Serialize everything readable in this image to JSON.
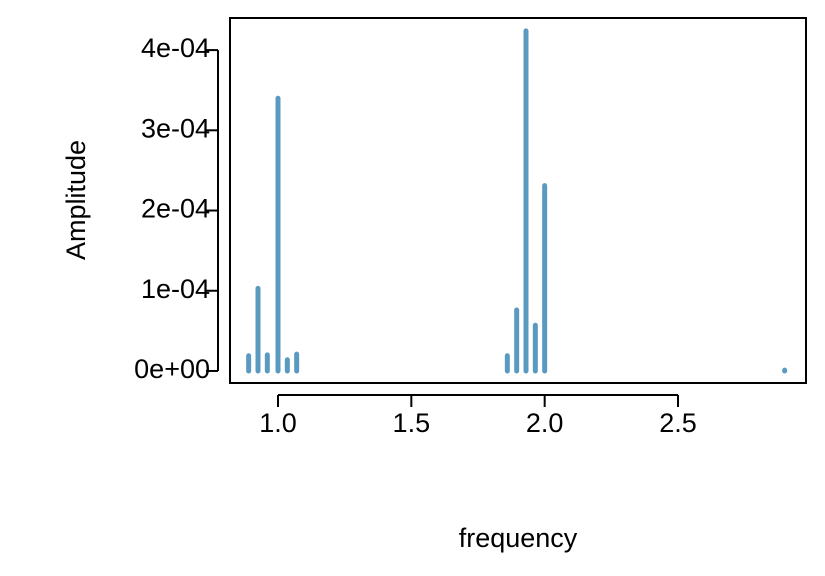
{
  "chart_data": {
    "type": "spike",
    "x_label": "frequency",
    "y_label": "Amplitude",
    "x": [
      0.89,
      0.925,
      0.96,
      1.0,
      1.035,
      1.07,
      1.86,
      1.895,
      1.93,
      1.965,
      2.0,
      2.9
    ],
    "values": [
      1.9e-05,
      0.000103,
      2e-05,
      0.00034,
      1.4e-05,
      2.1e-05,
      1.9e-05,
      7.6e-05,
      0.000424,
      5.7e-05,
      0.000231,
      1e-06
    ],
    "color": "#5a9ac0",
    "xlim": [
      0.82,
      2.98
    ],
    "ylim": [
      -1.5e-05,
      0.00044
    ],
    "xticks": [
      {
        "value": 1,
        "label": "1.0"
      },
      1.5,
      {
        "value": 2,
        "label": "2.0"
      },
      2.5
    ],
    "yticks": [
      {
        "value": 0,
        "label": "0e+00"
      },
      {
        "value": 0.0001,
        "label": "1e-04"
      },
      {
        "value": 0.0002,
        "label": "2e-04"
      },
      {
        "value": 0.0003,
        "label": "3e-04"
      },
      {
        "value": 0.0004,
        "label": "4e-04"
      }
    ]
  }
}
